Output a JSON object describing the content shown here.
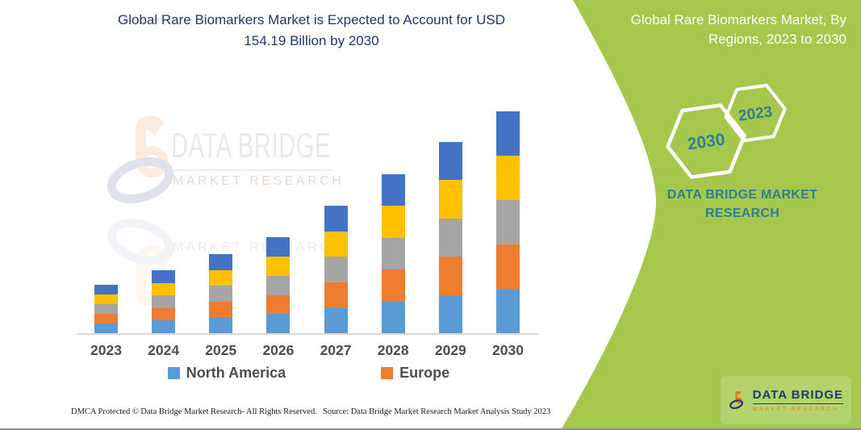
{
  "colors": {
    "green": "#A5C84C",
    "teal": "#2E7F95",
    "title_navy": "#1F3864",
    "brand_orange": "#E87722",
    "brand_navy": "#223A70",
    "axis_gray": "#D9D9D9",
    "label_gray": "#4D4D4D"
  },
  "left_panel": {
    "title": "Global Rare Biomarkers Market is Expected to Account for USD 154.19 Billion by 2030",
    "watermark": {
      "brand": "DATA BRIDGE",
      "tagline": "MARKET RESEARCH"
    },
    "footer_left": "DMCA Protected © Data Bridge Market Research-  All Rights Reserved.",
    "footer_right": "Source: Data Bridge Market Research  Market Analysis Study 2023"
  },
  "right_panel": {
    "title": "Global Rare Biomarkers Market, By Regions, 2023 to 2030",
    "hexagons": {
      "back_year": "2030",
      "front_year": "2023"
    },
    "brand_text": "DATA BRIDGE MARKET RESEARCH",
    "logo": {
      "brand": "DATA BRIDGE",
      "tagline": "MARKET RESEARCH"
    }
  },
  "chart_data": {
    "type": "bar",
    "stacked": true,
    "title": "Global Rare Biomarkers Market is Expected to Account for USD 154.19 Billion by 2030",
    "unit": "USD Billion",
    "categories": [
      "2023",
      "2024",
      "2025",
      "2026",
      "2027",
      "2028",
      "2029",
      "2030"
    ],
    "totals_usd_billion": [
      33.5,
      43.5,
      55.0,
      66.5,
      88.5,
      110.5,
      133.0,
      154.19
    ],
    "series": [
      {
        "name": "North America",
        "color": "#5B9BD5",
        "values": [
          6.7,
          8.7,
          11.0,
          13.3,
          17.7,
          22.1,
          26.6,
          30.84
        ]
      },
      {
        "name": "Europe",
        "color": "#ED7D31",
        "values": [
          6.7,
          8.7,
          11.0,
          13.3,
          17.7,
          22.1,
          26.6,
          30.84
        ]
      },
      {
        "name": "(unlabeled gray)",
        "color": "#A5A5A5",
        "values": [
          6.7,
          8.7,
          11.0,
          13.3,
          17.7,
          22.1,
          26.6,
          30.84
        ]
      },
      {
        "name": "(unlabeled yellow)",
        "color": "#FFC000",
        "values": [
          6.7,
          8.7,
          11.0,
          13.3,
          17.7,
          22.1,
          26.6,
          30.84
        ]
      },
      {
        "name": "(unlabeled dark blue)",
        "color": "#4472C4",
        "values": [
          6.7,
          8.7,
          11.0,
          13.3,
          17.7,
          22.1,
          26.6,
          30.84
        ]
      }
    ],
    "legend": [
      "North America",
      "Europe"
    ],
    "legend_position": "bottom",
    "ylim": [
      0,
      155
    ],
    "gridlines": false,
    "y_axis_visible": false
  }
}
